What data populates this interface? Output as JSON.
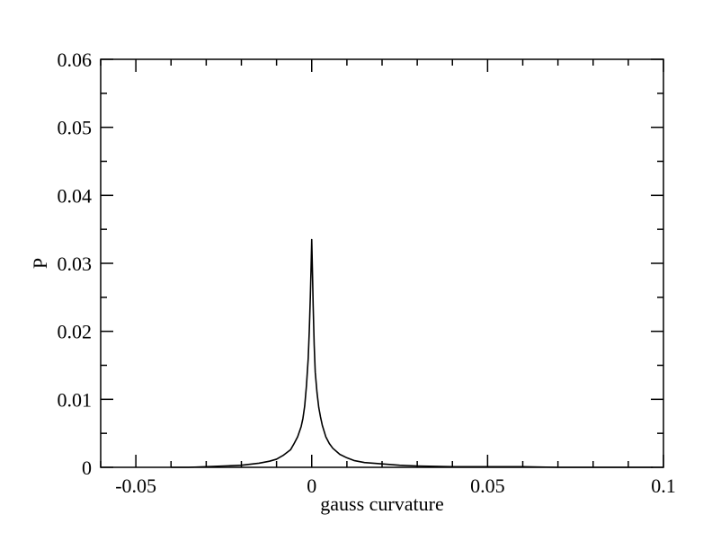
{
  "chart_data": {
    "type": "line",
    "title": "",
    "xlabel": "gauss curvature",
    "ylabel": "P",
    "xlim": [
      -0.06,
      0.1
    ],
    "ylim": [
      0,
      0.06
    ],
    "x_major_ticks": [
      -0.05,
      0,
      0.05,
      0.1
    ],
    "x_tick_labels": [
      "-0.05",
      "0",
      "0.05",
      "0.1"
    ],
    "y_major_ticks": [
      0,
      0.01,
      0.02,
      0.03,
      0.04,
      0.05,
      0.06
    ],
    "y_tick_labels": [
      "0",
      "0.01",
      "0.02",
      "0.03",
      "0.04",
      "0.05",
      "0.06"
    ],
    "grid": false,
    "legend": "none",
    "line_color": "#000000",
    "series": [
      {
        "x": [
          -0.04,
          -0.035,
          -0.03,
          -0.025,
          -0.02,
          -0.015,
          -0.012,
          -0.01,
          -0.008,
          -0.006,
          -0.005,
          -0.004,
          -0.003,
          -0.0025,
          -0.002,
          -0.0015,
          -0.001,
          -0.0007,
          -0.0004,
          -0.0002,
          0,
          0.0002,
          0.0004,
          0.0007,
          0.001,
          0.0015,
          0.002,
          0.0025,
          0.003,
          0.004,
          0.005,
          0.006,
          0.008,
          0.01,
          0.012,
          0.015,
          0.02,
          0.025,
          0.03,
          0.04,
          0.05,
          0.06,
          0.07,
          0.08,
          0.09,
          0.097
        ],
        "y": [
          0,
          0,
          0.0001,
          0.0002,
          0.0003,
          0.0006,
          0.0009,
          0.0012,
          0.0018,
          0.0026,
          0.0035,
          0.0045,
          0.006,
          0.0072,
          0.009,
          0.012,
          0.016,
          0.02,
          0.025,
          0.029,
          0.0335,
          0.029,
          0.024,
          0.018,
          0.014,
          0.011,
          0.0088,
          0.0074,
          0.0062,
          0.0045,
          0.0035,
          0.0028,
          0.0019,
          0.0014,
          0.001,
          0.0007,
          0.0005,
          0.0003,
          0.0002,
          0.0001,
          0.0001,
          0.0001,
          0,
          0,
          0,
          0
        ]
      }
    ]
  }
}
